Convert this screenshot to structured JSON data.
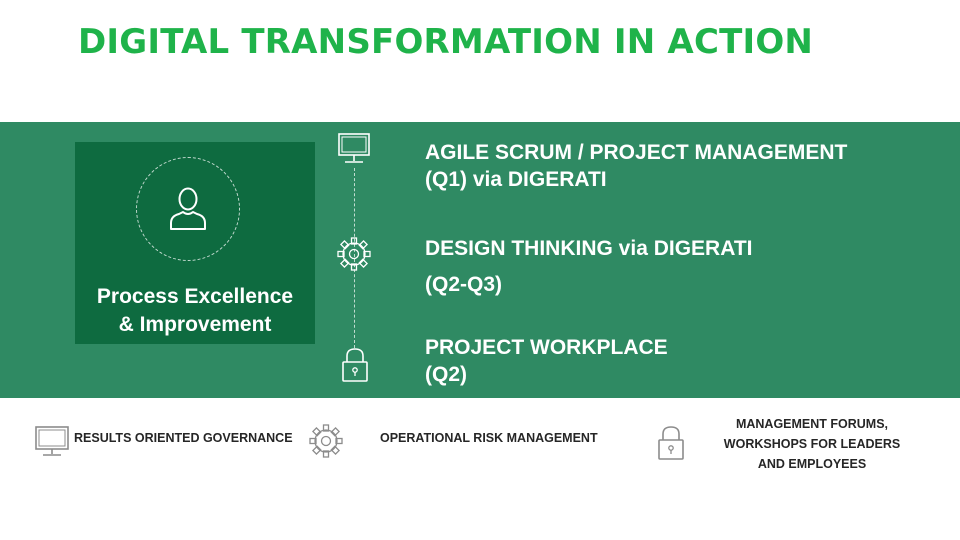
{
  "title": "DIGITAL TRANSFORMATION IN ACTION",
  "card": {
    "icon": "person-icon",
    "line1": "Process Excellence",
    "line2": "& Improvement"
  },
  "items": [
    {
      "icon": "monitor-icon",
      "line1": "AGILE SCRUM / PROJECT MANAGEMENT",
      "line2": "(Q1) via DIGERATI"
    },
    {
      "icon": "gear-icon",
      "line1": "DESIGN THINKING via DIGERATI",
      "line2": "(Q2-Q3)"
    },
    {
      "icon": "lock-icon",
      "line1": "PROJECT WORKPLACE",
      "line2": "(Q2)"
    }
  ],
  "bottom": [
    {
      "icon": "monitor-icon",
      "label": "RESULTS ORIENTED GOVERNANCE"
    },
    {
      "icon": "gear-icon",
      "label": "OPERATIONAL RISK MANAGEMENT"
    },
    {
      "icon": "lock-icon",
      "line1": "MANAGEMENT FORUMS,",
      "line2": "WORKSHOPS FOR LEADERS",
      "line3": "AND EMPLOYEES"
    }
  ],
  "colors": {
    "title": "#1fb34a",
    "band": "#2f8a63",
    "card": "#0e6b40",
    "text_light": "#ffffff",
    "text_dark": "#262626"
  }
}
